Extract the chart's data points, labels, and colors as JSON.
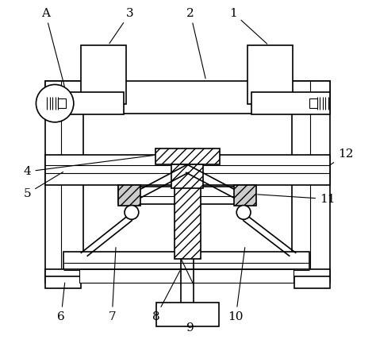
{
  "bg_color": "#ffffff",
  "line_color": "#000000",
  "gray_fill": "#888888",
  "light_gray": "#cccccc",
  "figsize": [
    4.74,
    4.42
  ],
  "dpi": 100
}
